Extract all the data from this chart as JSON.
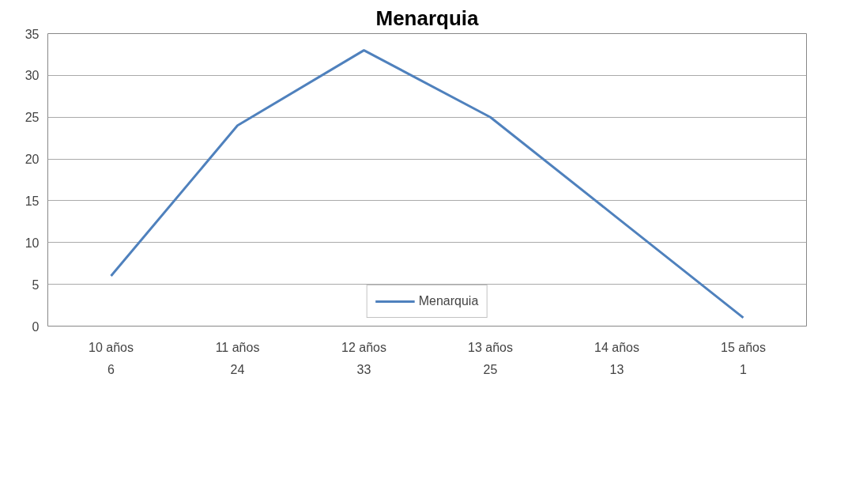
{
  "chart_data": {
    "type": "line",
    "title": "Menarquia",
    "categories": [
      "10 años",
      "11 años",
      "12 años",
      "13 años",
      "14 años",
      "15 años"
    ],
    "series": [
      {
        "name": "Menarquia",
        "color": "#4f81bd",
        "values": [
          6,
          24,
          33,
          25,
          13,
          1
        ]
      }
    ],
    "ylim": [
      0,
      35
    ],
    "yticks": [
      0,
      5,
      10,
      15,
      20,
      25,
      30,
      35
    ],
    "grid": "y",
    "legend": "bottom",
    "data_labels": true,
    "line_style": "solid",
    "marker": "none"
  }
}
